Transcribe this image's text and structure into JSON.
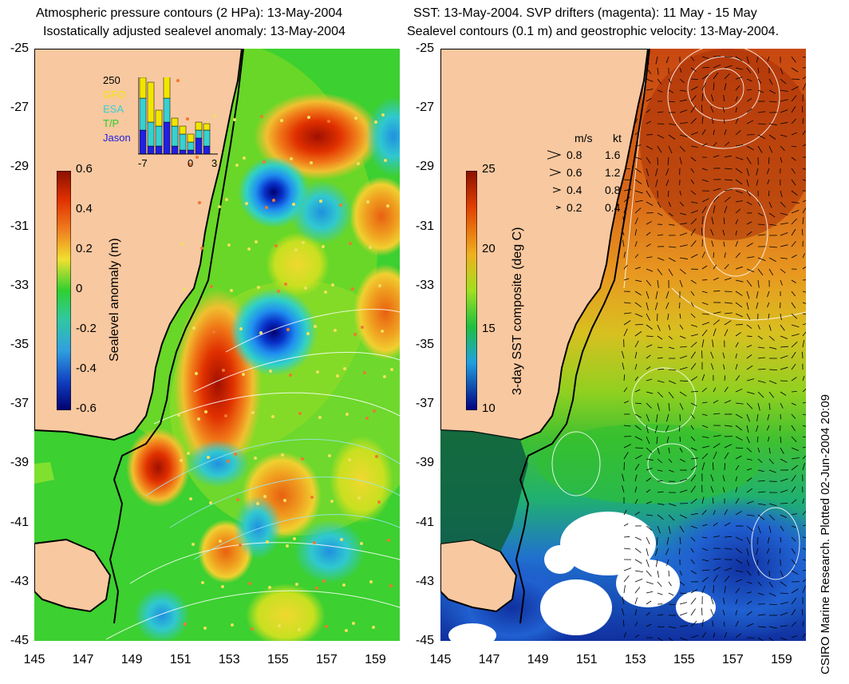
{
  "left": {
    "title_line1": "Atmospheric pressure contours (2 HPa): 13-May-2004",
    "title_line2": "Isostatically adjusted sealevel anomaly: 13-May-2004",
    "colorbar": {
      "label": "Sealevel anomaly (m)",
      "ticks": [
        "0.6",
        "0.4",
        "0.2",
        "0",
        "-0.2",
        "-0.4",
        "-0.6"
      ]
    },
    "inset": {
      "ymax_label": "250",
      "legend": [
        {
          "name": "GFO",
          "color": "#f2e600"
        },
        {
          "name": "ESA",
          "color": "#38d0d0"
        },
        {
          "name": "T/P",
          "color": "#28d028"
        },
        {
          "name": "Jason",
          "color": "#2020e0"
        }
      ],
      "xticks": [
        "-7",
        "0",
        "3"
      ]
    }
  },
  "right": {
    "title_line1": "SST: 13-May-2004. SVP drifters (magenta): 11 May - 15 May",
    "title_line2": "Sealevel contours (0.1 m) and geostrophic velocity: 13-May-2004.",
    "colorbar": {
      "label": "3-day SST composite (deg C)",
      "ticks": [
        "25",
        "20",
        "15",
        "10"
      ]
    },
    "velocity_key": {
      "header_ms": "m/s",
      "header_kt": "kt",
      "rows": [
        {
          "ms": "0.8",
          "kt": "1.6"
        },
        {
          "ms": "0.6",
          "kt": "1.2"
        },
        {
          "ms": "0.4",
          "kt": "0.8"
        },
        {
          "ms": "0.2",
          "kt": "0.4"
        }
      ]
    },
    "credit": "CSIRO Marine Research. Plotted 02-Jun-2004 20:09"
  },
  "axes": {
    "y_ticks": [
      "-25",
      "-27",
      "-29",
      "-31",
      "-33",
      "-35",
      "-37",
      "-39",
      "-41",
      "-43",
      "-45"
    ],
    "x_ticks": [
      "145",
      "147",
      "149",
      "151",
      "153",
      "155",
      "157",
      "159"
    ]
  },
  "colors": {
    "land": "#f8c8a0",
    "coast": "#000000",
    "contour": "#ffffff"
  }
}
